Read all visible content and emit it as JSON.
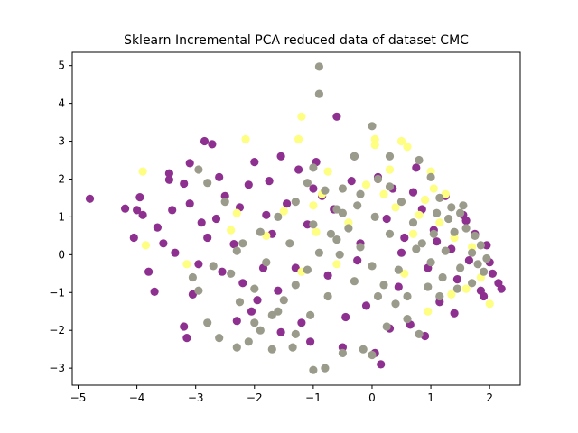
{
  "chart_data": {
    "type": "scatter",
    "title": "Sklearn Incremental PCA reduced data of dataset CMC",
    "xlabel": "",
    "ylabel": "",
    "xlim": [
      -5.1,
      2.52
    ],
    "ylim": [
      -3.45,
      5.35
    ],
    "xticks": [
      -5,
      -4,
      -3,
      -2,
      -1,
      0,
      1,
      2
    ],
    "yticks": [
      -3,
      -2,
      -1,
      0,
      1,
      2,
      3,
      4,
      5
    ],
    "grid": false,
    "legend": "none",
    "colors": {
      "purple": "#8e3090",
      "gray": "#9b9b8b",
      "yellow": "#fefe80"
    },
    "series": [
      {
        "color": "purple",
        "points": [
          [
            -4.8,
            1.48
          ],
          [
            -4.2,
            1.22
          ],
          [
            -4.0,
            1.18
          ],
          [
            -3.9,
            1.05
          ],
          [
            -3.95,
            1.52
          ],
          [
            -4.05,
            0.45
          ],
          [
            -3.8,
            -0.45
          ],
          [
            -3.7,
            -0.98
          ],
          [
            -3.65,
            0.72
          ],
          [
            -3.45,
            2.15
          ],
          [
            -3.45,
            1.98
          ],
          [
            -3.4,
            1.18
          ],
          [
            -3.35,
            0.05
          ],
          [
            -3.2,
            1.88
          ],
          [
            -3.1,
            2.42
          ],
          [
            -3.1,
            1.35
          ],
          [
            -2.95,
            -0.25
          ],
          [
            -2.9,
            0.85
          ],
          [
            -2.85,
            3.0
          ],
          [
            -2.72,
            2.92
          ],
          [
            -2.6,
            2.05
          ],
          [
            -2.5,
            1.55
          ],
          [
            -2.35,
            0.28
          ],
          [
            -2.2,
            -0.75
          ],
          [
            -2.1,
            1.85
          ],
          [
            -2.0,
            2.45
          ],
          [
            -1.95,
            -1.2
          ],
          [
            -1.8,
            1.05
          ],
          [
            -1.7,
            0.55
          ],
          [
            -1.55,
            2.6
          ],
          [
            -1.45,
            1.35
          ],
          [
            -1.3,
            -0.35
          ],
          [
            -1.2,
            -1.8
          ],
          [
            -1.1,
            0.8
          ],
          [
            -0.95,
            2.45
          ],
          [
            -0.85,
            1.55
          ],
          [
            -0.75,
            -0.55
          ],
          [
            -0.6,
            3.65
          ],
          [
            -0.5,
            -2.45
          ],
          [
            -0.35,
            1.95
          ],
          [
            -0.2,
            0.3
          ],
          [
            -0.1,
            -1.35
          ],
          [
            0.05,
            -2.6
          ],
          [
            0.15,
            -2.9
          ],
          [
            0.25,
            0.95
          ],
          [
            0.35,
            1.75
          ],
          [
            0.45,
            -0.85
          ],
          [
            0.55,
            0.45
          ],
          [
            0.65,
            -1.85
          ],
          [
            0.75,
            2.3
          ],
          [
            0.85,
            1.2
          ],
          [
            0.95,
            -0.35
          ],
          [
            1.05,
            0.65
          ],
          [
            1.15,
            -1.25
          ],
          [
            1.25,
            1.55
          ],
          [
            1.35,
            0.15
          ],
          [
            1.45,
            -0.65
          ],
          [
            1.55,
            1.05
          ],
          [
            1.65,
            -0.15
          ],
          [
            1.75,
            0.55
          ],
          [
            1.85,
            -0.95
          ],
          [
            1.95,
            0.25
          ],
          [
            2.05,
            -0.5
          ],
          [
            2.15,
            -0.75
          ],
          [
            2.2,
            -0.9
          ],
          [
            -2.55,
            -0.45
          ],
          [
            -2.05,
            -1.5
          ],
          [
            -1.55,
            -2.05
          ],
          [
            -1.05,
            -2.3
          ],
          [
            -0.45,
            -1.65
          ],
          [
            0.3,
            -1.95
          ],
          [
            0.9,
            -2.15
          ],
          [
            1.4,
            -1.55
          ],
          [
            1.9,
            -1.1
          ],
          [
            -1.75,
            1.95
          ],
          [
            -1.25,
            2.25
          ],
          [
            -0.65,
            1.2
          ],
          [
            0.1,
            2.05
          ],
          [
            -2.65,
            0.95
          ],
          [
            -3.05,
            -1.05
          ],
          [
            -3.2,
            -1.9
          ],
          [
            -3.15,
            -2.2
          ],
          [
            -2.3,
            -1.75
          ],
          [
            -1.6,
            -0.95
          ],
          [
            -0.25,
            -0.15
          ],
          [
            0.5,
            0.05
          ],
          [
            1.1,
            0.35
          ],
          [
            1.6,
            0.9
          ],
          [
            2.0,
            -0.2
          ],
          [
            -1.0,
            1.75
          ],
          [
            -0.3,
            2.6
          ],
          [
            -3.55,
            0.3
          ],
          [
            -2.8,
            0.45
          ],
          [
            -2.25,
            1.25
          ],
          [
            -1.85,
            -0.35
          ],
          [
            0.7,
            1.65
          ]
        ]
      },
      {
        "color": "yellow",
        "points": [
          [
            -3.9,
            2.2
          ],
          [
            -3.85,
            0.25
          ],
          [
            -2.15,
            3.05
          ],
          [
            -1.2,
            3.65
          ],
          [
            -1.25,
            3.05
          ],
          [
            0.05,
            3.05
          ],
          [
            0.5,
            3.0
          ],
          [
            0.6,
            2.85
          ],
          [
            0.05,
            2.9
          ],
          [
            -0.75,
            2.2
          ],
          [
            -0.85,
            1.6
          ],
          [
            1.0,
            2.2
          ],
          [
            1.05,
            1.75
          ],
          [
            0.9,
            1.45
          ],
          [
            1.25,
            1.6
          ],
          [
            0.8,
            1.05
          ],
          [
            1.15,
            0.85
          ],
          [
            0.7,
            0.55
          ],
          [
            0.4,
            1.25
          ],
          [
            0.2,
            1.6
          ],
          [
            -0.1,
            1.85
          ],
          [
            -0.4,
            0.85
          ],
          [
            -0.95,
            0.6
          ],
          [
            -1.5,
            1.15
          ],
          [
            -2.3,
            1.1
          ],
          [
            -3.15,
            -0.25
          ],
          [
            1.6,
            -0.9
          ],
          [
            1.85,
            -0.6
          ],
          [
            2.0,
            -1.3
          ],
          [
            1.35,
            -1.05
          ],
          [
            0.95,
            -1.5
          ],
          [
            -0.6,
            -0.25
          ],
          [
            -1.2,
            -0.45
          ],
          [
            -1.8,
            0.5
          ],
          [
            0.3,
            2.25
          ],
          [
            1.4,
            0.45
          ],
          [
            1.7,
            0.2
          ],
          [
            0.55,
            -0.5
          ],
          [
            -2.4,
            0.65
          ],
          [
            -1.0,
            1.3
          ]
        ]
      },
      {
        "color": "gray",
        "points": [
          [
            -0.9,
            4.97
          ],
          [
            -0.9,
            4.25
          ],
          [
            0.0,
            3.4
          ],
          [
            -1.0,
            2.3
          ],
          [
            -0.3,
            2.6
          ],
          [
            0.3,
            2.6
          ],
          [
            0.8,
            2.5
          ],
          [
            1.0,
            2.05
          ],
          [
            1.15,
            1.5
          ],
          [
            1.35,
            1.25
          ],
          [
            1.5,
            1.1
          ],
          [
            1.6,
            0.7
          ],
          [
            1.75,
            0.5
          ],
          [
            1.85,
            0.25
          ],
          [
            1.95,
            -0.1
          ],
          [
            1.9,
            -0.45
          ],
          [
            1.7,
            -0.75
          ],
          [
            1.45,
            -0.9
          ],
          [
            1.2,
            -0.6
          ],
          [
            1.0,
            -0.2
          ],
          [
            0.85,
            0.3
          ],
          [
            0.7,
            0.85
          ],
          [
            0.5,
            1.4
          ],
          [
            0.3,
            1.8
          ],
          [
            0.1,
            2.0
          ],
          [
            -0.2,
            1.6
          ],
          [
            -0.5,
            1.1
          ],
          [
            -0.7,
            0.55
          ],
          [
            -0.9,
            0.05
          ],
          [
            -1.1,
            -0.4
          ],
          [
            -1.3,
            -0.8
          ],
          [
            -1.5,
            -1.2
          ],
          [
            -1.7,
            -1.6
          ],
          [
            -1.9,
            -2.0
          ],
          [
            -2.1,
            -2.3
          ],
          [
            -2.3,
            -2.45
          ],
          [
            -2.6,
            -2.2
          ],
          [
            -2.8,
            -1.8
          ],
          [
            -2.95,
            -0.95
          ],
          [
            -3.05,
            -0.6
          ],
          [
            -2.7,
            -0.3
          ],
          [
            -2.3,
            0.1
          ],
          [
            -1.9,
            0.6
          ],
          [
            -1.6,
            1.0
          ],
          [
            -1.3,
            1.4
          ],
          [
            -1.1,
            1.9
          ],
          [
            -0.8,
            1.7
          ],
          [
            -0.6,
            1.2
          ],
          [
            -0.4,
            0.7
          ],
          [
            -0.2,
            0.2
          ],
          [
            0.0,
            -0.3
          ],
          [
            0.2,
            -0.8
          ],
          [
            0.4,
            -1.3
          ],
          [
            0.6,
            -1.7
          ],
          [
            0.8,
            -2.1
          ],
          [
            0.0,
            -2.65
          ],
          [
            -0.15,
            -2.5
          ],
          [
            -0.5,
            -2.6
          ],
          [
            -0.8,
            -3.0
          ],
          [
            -1.0,
            -3.05
          ],
          [
            -1.3,
            -2.1
          ],
          [
            -1.6,
            -1.5
          ],
          [
            -2.0,
            -0.9
          ],
          [
            -2.4,
            -0.5
          ],
          [
            -2.8,
            1.9
          ],
          [
            -2.95,
            2.25
          ],
          [
            -2.5,
            1.4
          ],
          [
            -2.2,
            0.3
          ],
          [
            -1.8,
            -0.2
          ],
          [
            -1.4,
            0.3
          ],
          [
            -1.0,
            0.8
          ],
          [
            -0.6,
            0.4
          ],
          [
            -0.3,
            -0.7
          ],
          [
            0.1,
            -1.1
          ],
          [
            0.45,
            -0.4
          ],
          [
            0.75,
            0.15
          ],
          [
            1.05,
            0.55
          ],
          [
            1.3,
            0.95
          ],
          [
            1.55,
            1.3
          ],
          [
            1.7,
            0.05
          ],
          [
            1.5,
            -0.35
          ],
          [
            1.25,
            0.1
          ],
          [
            0.95,
            -0.85
          ],
          [
            0.6,
            -1.1
          ],
          [
            0.3,
            0.55
          ],
          [
            0.05,
            1.0
          ],
          [
            -0.25,
            1.3
          ],
          [
            -0.5,
            1.75
          ],
          [
            -0.75,
            -1.1
          ],
          [
            -1.05,
            -1.6
          ],
          [
            -1.35,
            -2.45
          ],
          [
            -1.7,
            -2.5
          ],
          [
            -2.0,
            -1.8
          ],
          [
            -2.25,
            -1.25
          ],
          [
            -0.55,
            0.0
          ],
          [
            0.25,
            -1.9
          ],
          [
            1.1,
            1.1
          ],
          [
            1.4,
            0.6
          ],
          [
            1.8,
            -0.25
          ],
          [
            1.15,
            -1.1
          ]
        ]
      }
    ]
  }
}
